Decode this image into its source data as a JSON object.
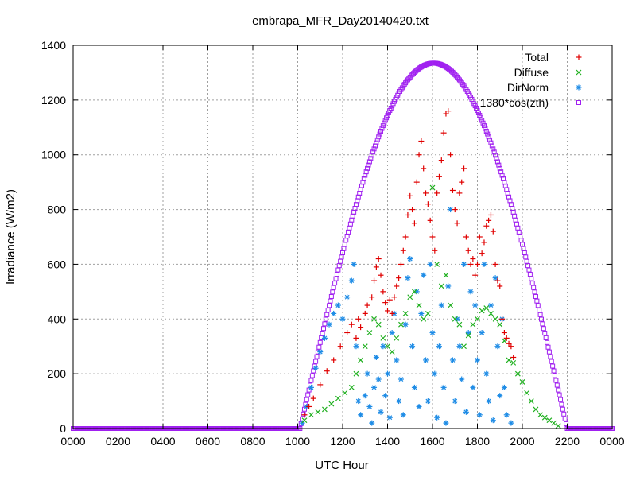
{
  "colors": {
    "total": "#e00000",
    "diffuse": "#20b020",
    "dirnorm": "#1e8ce6",
    "cos": "#a020f0"
  },
  "chart_data": {
    "type": "scatter",
    "title": "embrapa_MFR_Day20140420.txt",
    "xlabel": "UTC Hour",
    "ylabel": "Irradiance (W/m2)",
    "xlim": [
      0,
      2400
    ],
    "ylim": [
      0,
      1400
    ],
    "x_tick_values": [
      0,
      200,
      400,
      600,
      800,
      1000,
      1200,
      1400,
      1600,
      1800,
      2000,
      2200,
      2400
    ],
    "x_ticks": [
      "0000",
      "0200",
      "0400",
      "0600",
      "0800",
      "1000",
      "1200",
      "1400",
      "1600",
      "1800",
      "2000",
      "2200",
      "0000"
    ],
    "y_ticks": [
      0,
      200,
      400,
      600,
      800,
      1000,
      1200,
      1400
    ],
    "grid": true,
    "legend_position": "top-right",
    "series": [
      {
        "name": "Total",
        "marker": "plus",
        "points": [
          [
            1030,
            50
          ],
          [
            1050,
            80
          ],
          [
            1070,
            110
          ],
          [
            1100,
            160
          ],
          [
            1130,
            210
          ],
          [
            1160,
            250
          ],
          [
            1190,
            300
          ],
          [
            1220,
            350
          ],
          [
            1240,
            380
          ],
          [
            1260,
            330
          ],
          [
            1270,
            400
          ],
          [
            1280,
            370
          ],
          [
            1300,
            420
          ],
          [
            1310,
            450
          ],
          [
            1330,
            480
          ],
          [
            1340,
            540
          ],
          [
            1350,
            590
          ],
          [
            1360,
            620
          ],
          [
            1370,
            560
          ],
          [
            1380,
            500
          ],
          [
            1390,
            460
          ],
          [
            1400,
            430
          ],
          [
            1410,
            470
          ],
          [
            1420,
            420
          ],
          [
            1430,
            480
          ],
          [
            1440,
            520
          ],
          [
            1450,
            550
          ],
          [
            1460,
            600
          ],
          [
            1470,
            650
          ],
          [
            1480,
            700
          ],
          [
            1490,
            780
          ],
          [
            1500,
            850
          ],
          [
            1510,
            800
          ],
          [
            1520,
            750
          ],
          [
            1530,
            900
          ],
          [
            1540,
            1000
          ],
          [
            1550,
            1050
          ],
          [
            1560,
            950
          ],
          [
            1570,
            860
          ],
          [
            1580,
            820
          ],
          [
            1590,
            760
          ],
          [
            1600,
            700
          ],
          [
            1610,
            650
          ],
          [
            1620,
            860
          ],
          [
            1630,
            920
          ],
          [
            1640,
            980
          ],
          [
            1650,
            1080
          ],
          [
            1660,
            1150
          ],
          [
            1670,
            1160
          ],
          [
            1680,
            1000
          ],
          [
            1690,
            870
          ],
          [
            1700,
            800
          ],
          [
            1710,
            750
          ],
          [
            1720,
            860
          ],
          [
            1730,
            900
          ],
          [
            1740,
            950
          ],
          [
            1750,
            700
          ],
          [
            1760,
            650
          ],
          [
            1770,
            600
          ],
          [
            1780,
            620
          ],
          [
            1790,
            560
          ],
          [
            1800,
            600
          ],
          [
            1810,
            700
          ],
          [
            1820,
            640
          ],
          [
            1830,
            680
          ],
          [
            1840,
            740
          ],
          [
            1850,
            760
          ],
          [
            1860,
            780
          ],
          [
            1870,
            720
          ],
          [
            1880,
            600
          ],
          [
            1890,
            540
          ],
          [
            1900,
            520
          ],
          [
            1910,
            400
          ],
          [
            1920,
            350
          ],
          [
            1930,
            330
          ],
          [
            1940,
            310
          ],
          [
            1950,
            300
          ],
          [
            1960,
            260
          ]
        ]
      },
      {
        "name": "Diffuse",
        "marker": "cross",
        "points": [
          [
            1030,
            30
          ],
          [
            1060,
            50
          ],
          [
            1090,
            60
          ],
          [
            1120,
            70
          ],
          [
            1150,
            90
          ],
          [
            1180,
            110
          ],
          [
            1210,
            130
          ],
          [
            1240,
            150
          ],
          [
            1260,
            200
          ],
          [
            1280,
            250
          ],
          [
            1300,
            300
          ],
          [
            1320,
            350
          ],
          [
            1340,
            400
          ],
          [
            1360,
            380
          ],
          [
            1380,
            330
          ],
          [
            1400,
            300
          ],
          [
            1420,
            280
          ],
          [
            1440,
            330
          ],
          [
            1460,
            380
          ],
          [
            1480,
            420
          ],
          [
            1500,
            480
          ],
          [
            1520,
            500
          ],
          [
            1540,
            450
          ],
          [
            1560,
            400
          ],
          [
            1580,
            420
          ],
          [
            1600,
            880
          ],
          [
            1620,
            600
          ],
          [
            1640,
            520
          ],
          [
            1660,
            560
          ],
          [
            1680,
            450
          ],
          [
            1700,
            400
          ],
          [
            1720,
            380
          ],
          [
            1740,
            300
          ],
          [
            1760,
            340
          ],
          [
            1780,
            380
          ],
          [
            1800,
            400
          ],
          [
            1820,
            430
          ],
          [
            1840,
            440
          ],
          [
            1860,
            420
          ],
          [
            1880,
            400
          ],
          [
            1900,
            380
          ],
          [
            1920,
            320
          ],
          [
            1940,
            250
          ],
          [
            1960,
            240
          ],
          [
            1980,
            200
          ],
          [
            2000,
            170
          ],
          [
            2020,
            130
          ],
          [
            2040,
            100
          ],
          [
            2060,
            70
          ],
          [
            2080,
            50
          ],
          [
            2100,
            40
          ],
          [
            2120,
            30
          ],
          [
            2140,
            20
          ],
          [
            2160,
            10
          ]
        ]
      },
      {
        "name": "DirNorm",
        "marker": "star",
        "points": [
          [
            1020,
            20
          ],
          [
            1040,
            80
          ],
          [
            1060,
            150
          ],
          [
            1080,
            220
          ],
          [
            1100,
            280
          ],
          [
            1120,
            330
          ],
          [
            1140,
            380
          ],
          [
            1160,
            420
          ],
          [
            1180,
            450
          ],
          [
            1200,
            400
          ],
          [
            1220,
            480
          ],
          [
            1240,
            540
          ],
          [
            1250,
            600
          ],
          [
            1260,
            300
          ],
          [
            1270,
            100
          ],
          [
            1280,
            50
          ],
          [
            1300,
            120
          ],
          [
            1310,
            200
          ],
          [
            1320,
            80
          ],
          [
            1330,
            20
          ],
          [
            1340,
            150
          ],
          [
            1350,
            260
          ],
          [
            1360,
            180
          ],
          [
            1370,
            60
          ],
          [
            1380,
            300
          ],
          [
            1390,
            120
          ],
          [
            1400,
            200
          ],
          [
            1410,
            40
          ],
          [
            1420,
            350
          ],
          [
            1430,
            420
          ],
          [
            1440,
            250
          ],
          [
            1450,
            100
          ],
          [
            1460,
            180
          ],
          [
            1470,
            50
          ],
          [
            1480,
            380
          ],
          [
            1490,
            550
          ],
          [
            1500,
            620
          ],
          [
            1510,
            300
          ],
          [
            1520,
            150
          ],
          [
            1530,
            500
          ],
          [
            1540,
            80
          ],
          [
            1550,
            420
          ],
          [
            1560,
            560
          ],
          [
            1570,
            250
          ],
          [
            1580,
            100
          ],
          [
            1590,
            600
          ],
          [
            1600,
            350
          ],
          [
            1610,
            200
          ],
          [
            1620,
            40
          ],
          [
            1630,
            300
          ],
          [
            1640,
            450
          ],
          [
            1650,
            150
          ],
          [
            1660,
            20
          ],
          [
            1670,
            520
          ],
          [
            1680,
            800
          ],
          [
            1690,
            250
          ],
          [
            1700,
            100
          ],
          [
            1710,
            400
          ],
          [
            1720,
            300
          ],
          [
            1730,
            180
          ],
          [
            1740,
            600
          ],
          [
            1750,
            60
          ],
          [
            1760,
            350
          ],
          [
            1770,
            500
          ],
          [
            1780,
            150
          ],
          [
            1790,
            450
          ],
          [
            1800,
            250
          ],
          [
            1810,
            50
          ],
          [
            1820,
            350
          ],
          [
            1830,
            600
          ],
          [
            1840,
            200
          ],
          [
            1850,
            100
          ],
          [
            1860,
            450
          ],
          [
            1870,
            30
          ],
          [
            1880,
            550
          ],
          [
            1890,
            300
          ],
          [
            1900,
            120
          ],
          [
            1910,
            400
          ],
          [
            1920,
            150
          ],
          [
            1930,
            50
          ],
          [
            1950,
            20
          ]
        ]
      },
      {
        "name": "1380*cos(zth)",
        "marker": "square",
        "peak_x": 1605,
        "peak_y": 1335,
        "rise_x": 1010,
        "set_x": 2200
      }
    ]
  }
}
